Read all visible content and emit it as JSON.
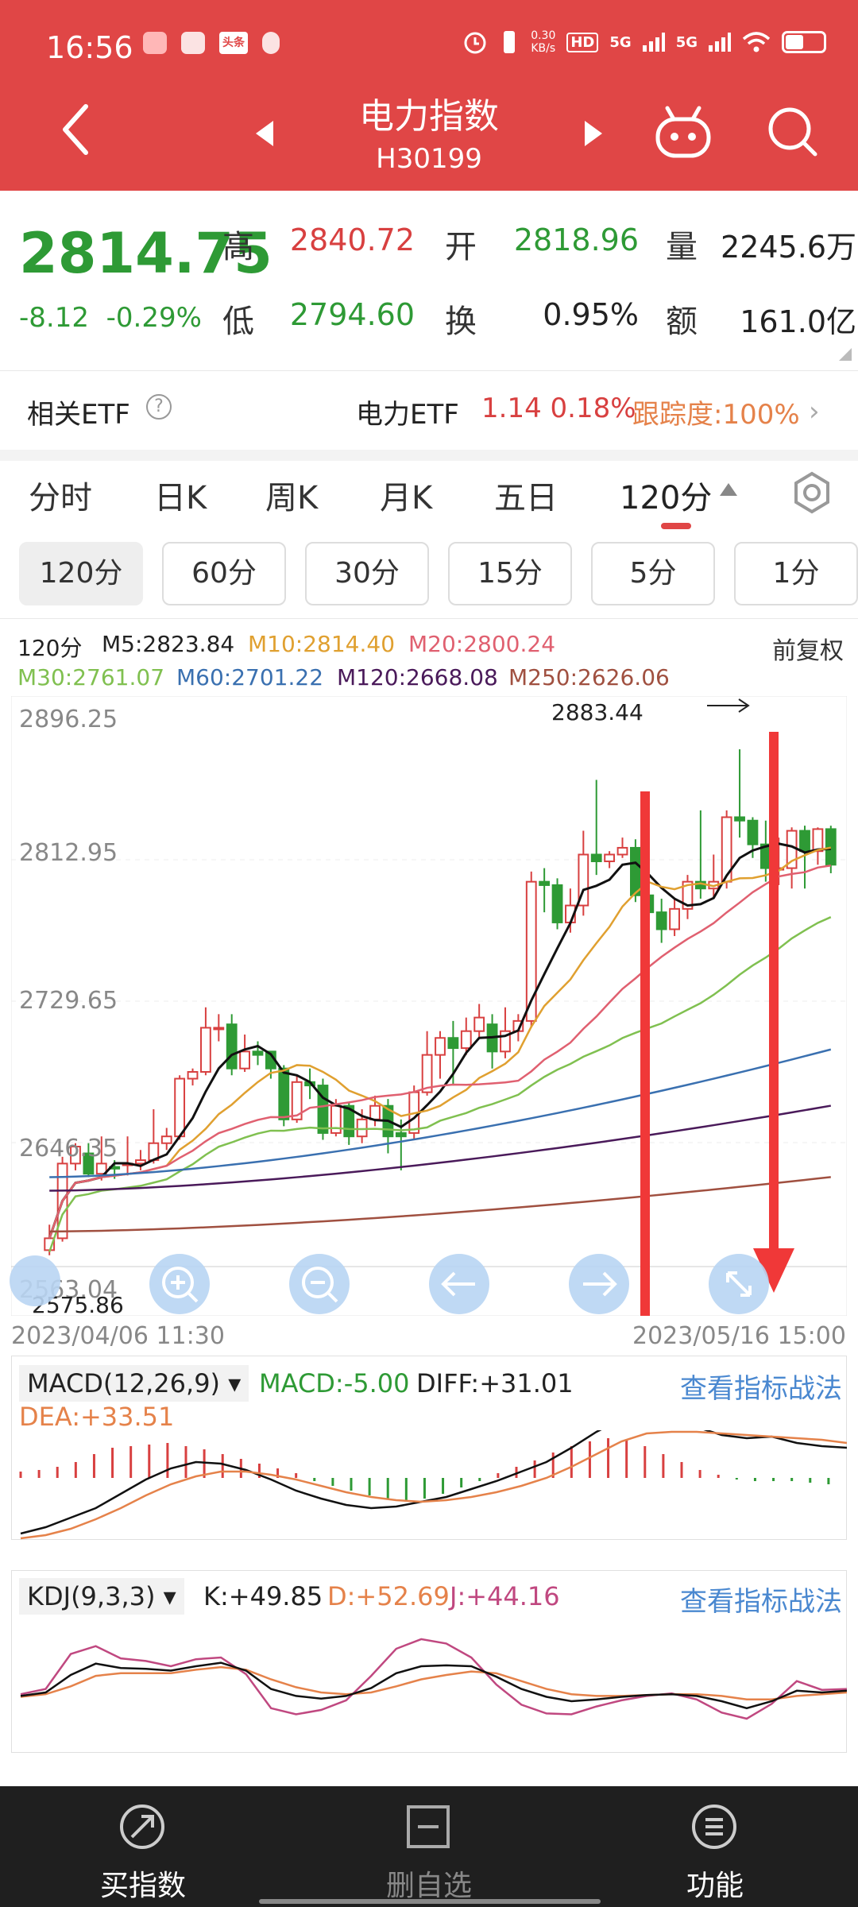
{
  "status_bar": {
    "time": "16:56",
    "net_speed": "0.30",
    "net_unit": "KB/s",
    "hd": "HD",
    "sig1": "5G",
    "sig2": "5G",
    "toutiao": "头条"
  },
  "header": {
    "title": "电力指数",
    "code": "H30199"
  },
  "quote": {
    "price": "2814.75",
    "change": "-8.12",
    "change_pct": "-0.29%",
    "high_label": "高",
    "high": "2840.72",
    "open_label": "开",
    "open": "2818.96",
    "volume_label": "量",
    "volume": "2245.6万",
    "low_label": "低",
    "low": "2794.60",
    "turnover_label": "换",
    "turnover": "0.95%",
    "amount_label": "额",
    "amount": "161.0亿"
  },
  "etf": {
    "label": "相关ETF",
    "help": "?",
    "name": "电力ETF",
    "price": "1.14",
    "pct": "0.18%",
    "tracking": "跟踪度:100%",
    "arrow": "›"
  },
  "period_tabs": [
    "分时",
    "日K",
    "周K",
    "月K",
    "五日",
    "120分"
  ],
  "active_tab": "120分",
  "sub_periods": [
    "120分",
    "60分",
    "30分",
    "15分",
    "5分",
    "1分"
  ],
  "chart_header": {
    "period": "120分",
    "m5": "M5:2823.84",
    "m10": "M10:2814.40",
    "m20": "M20:2800.24",
    "m30": "M30:2761.07",
    "m60": "M60:2701.22",
    "m120": "M120:2668.08",
    "m250": "M250:2626.06",
    "adjust": "前复权"
  },
  "colors": {
    "header_red": "#e04646",
    "up": "#d84040",
    "down": "#2e9a35",
    "m10": "#e0a030",
    "m20": "#e06070",
    "m30": "#80c050",
    "m60": "#3a70b0",
    "m120": "#4a1a5a",
    "m250": "#a05040",
    "arrow": "#f03838"
  },
  "chart_data": {
    "type": "candlestick",
    "y_ticks": [
      "2896.25",
      "2812.95",
      "2729.65",
      "2646.35",
      "2563.04"
    ],
    "high_marker": "2883.44",
    "low_marker": "2575.86",
    "start_date": "2023/04/06 11:30",
    "end_date": "2023/05/16 15:00",
    "y_range": [
      2563.04,
      2896.25
    ],
    "candles": [
      [
        2583,
        2590,
        2580,
        2598
      ],
      [
        2590,
        2634,
        2588,
        2638
      ],
      [
        2634,
        2644,
        2630,
        2646
      ],
      [
        2640,
        2628,
        2626,
        2646
      ],
      [
        2628,
        2634,
        2624,
        2650
      ],
      [
        2632,
        2631,
        2625,
        2636
      ],
      [
        2633,
        2634,
        2627,
        2650
      ],
      [
        2634,
        2636,
        2630,
        2642
      ],
      [
        2636,
        2646,
        2634,
        2666
      ],
      [
        2646,
        2650,
        2642,
        2655
      ],
      [
        2650,
        2684,
        2648,
        2686
      ],
      [
        2684,
        2688,
        2680,
        2690
      ],
      [
        2688,
        2714,
        2686,
        2726
      ],
      [
        2714,
        2714,
        2706,
        2722
      ],
      [
        2716,
        2690,
        2686,
        2722
      ],
      [
        2690,
        2700,
        2688,
        2710
      ],
      [
        2700,
        2698,
        2692,
        2706
      ],
      [
        2700,
        2690,
        2684,
        2698
      ],
      [
        2690,
        2660,
        2656,
        2692
      ],
      [
        2660,
        2682,
        2658,
        2686
      ],
      [
        2682,
        2680,
        2672,
        2690
      ],
      [
        2680,
        2652,
        2648,
        2684
      ],
      [
        2652,
        2668,
        2650,
        2672
      ],
      [
        2668,
        2650,
        2645,
        2670
      ],
      [
        2650,
        2660,
        2646,
        2666
      ],
      [
        2660,
        2668,
        2656,
        2674
      ],
      [
        2668,
        2650,
        2640,
        2672
      ],
      [
        2652,
        2650,
        2630,
        2660
      ],
      [
        2652,
        2676,
        2648,
        2680
      ],
      [
        2676,
        2698,
        2674,
        2712
      ],
      [
        2698,
        2708,
        2684,
        2712
      ],
      [
        2708,
        2702,
        2680,
        2718
      ],
      [
        2702,
        2712,
        2698,
        2720
      ],
      [
        2712,
        2720,
        2708,
        2728
      ],
      [
        2716,
        2700,
        2690,
        2722
      ],
      [
        2700,
        2712,
        2696,
        2726
      ],
      [
        2712,
        2718,
        2706,
        2722
      ],
      [
        2718,
        2800,
        2714,
        2806
      ],
      [
        2800,
        2798,
        2782,
        2808
      ],
      [
        2798,
        2776,
        2772,
        2802
      ],
      [
        2776,
        2786,
        2770,
        2796
      ],
      [
        2786,
        2816,
        2780,
        2830
      ],
      [
        2816,
        2812,
        2804,
        2860
      ],
      [
        2812,
        2816,
        2808,
        2818
      ],
      [
        2816,
        2820,
        2814,
        2826
      ],
      [
        2820,
        2792,
        2788,
        2825
      ],
      [
        2792,
        2782,
        2776,
        2808
      ],
      [
        2782,
        2772,
        2764,
        2790
      ],
      [
        2772,
        2784,
        2768,
        2790
      ],
      [
        2784,
        2800,
        2778,
        2804
      ],
      [
        2800,
        2796,
        2790,
        2842
      ],
      [
        2796,
        2800,
        2790,
        2816
      ],
      [
        2800,
        2838,
        2796,
        2842
      ],
      [
        2838,
        2836,
        2826,
        2878
      ],
      [
        2836,
        2822,
        2814,
        2838
      ],
      [
        2822,
        2808,
        2800,
        2836
      ],
      [
        2808,
        2808,
        2798,
        2826
      ],
      [
        2808,
        2830,
        2796,
        2832
      ],
      [
        2830,
        2818,
        2796,
        2833
      ],
      [
        2818,
        2831,
        2810,
        2832
      ],
      [
        2831,
        2810,
        2805,
        2833
      ]
    ]
  },
  "macd": {
    "select": "MACD(12,26,9)",
    "macd": "MACD:-5.00",
    "diff": "DIFF:+31.01",
    "dea": "DEA:+33.51",
    "link": "查看指标战法"
  },
  "kdj": {
    "select": "KDJ(9,3,3)",
    "k": "K:+49.85",
    "d": "D:+52.69",
    "j": "J:+44.16",
    "link": "查看指标战法"
  },
  "bottom_nav": [
    {
      "label": "买指数",
      "icon": "buy-index-icon"
    },
    {
      "label": "删自选",
      "icon": "remove-watchlist-icon"
    },
    {
      "label": "功能",
      "icon": "menu-icon"
    }
  ]
}
